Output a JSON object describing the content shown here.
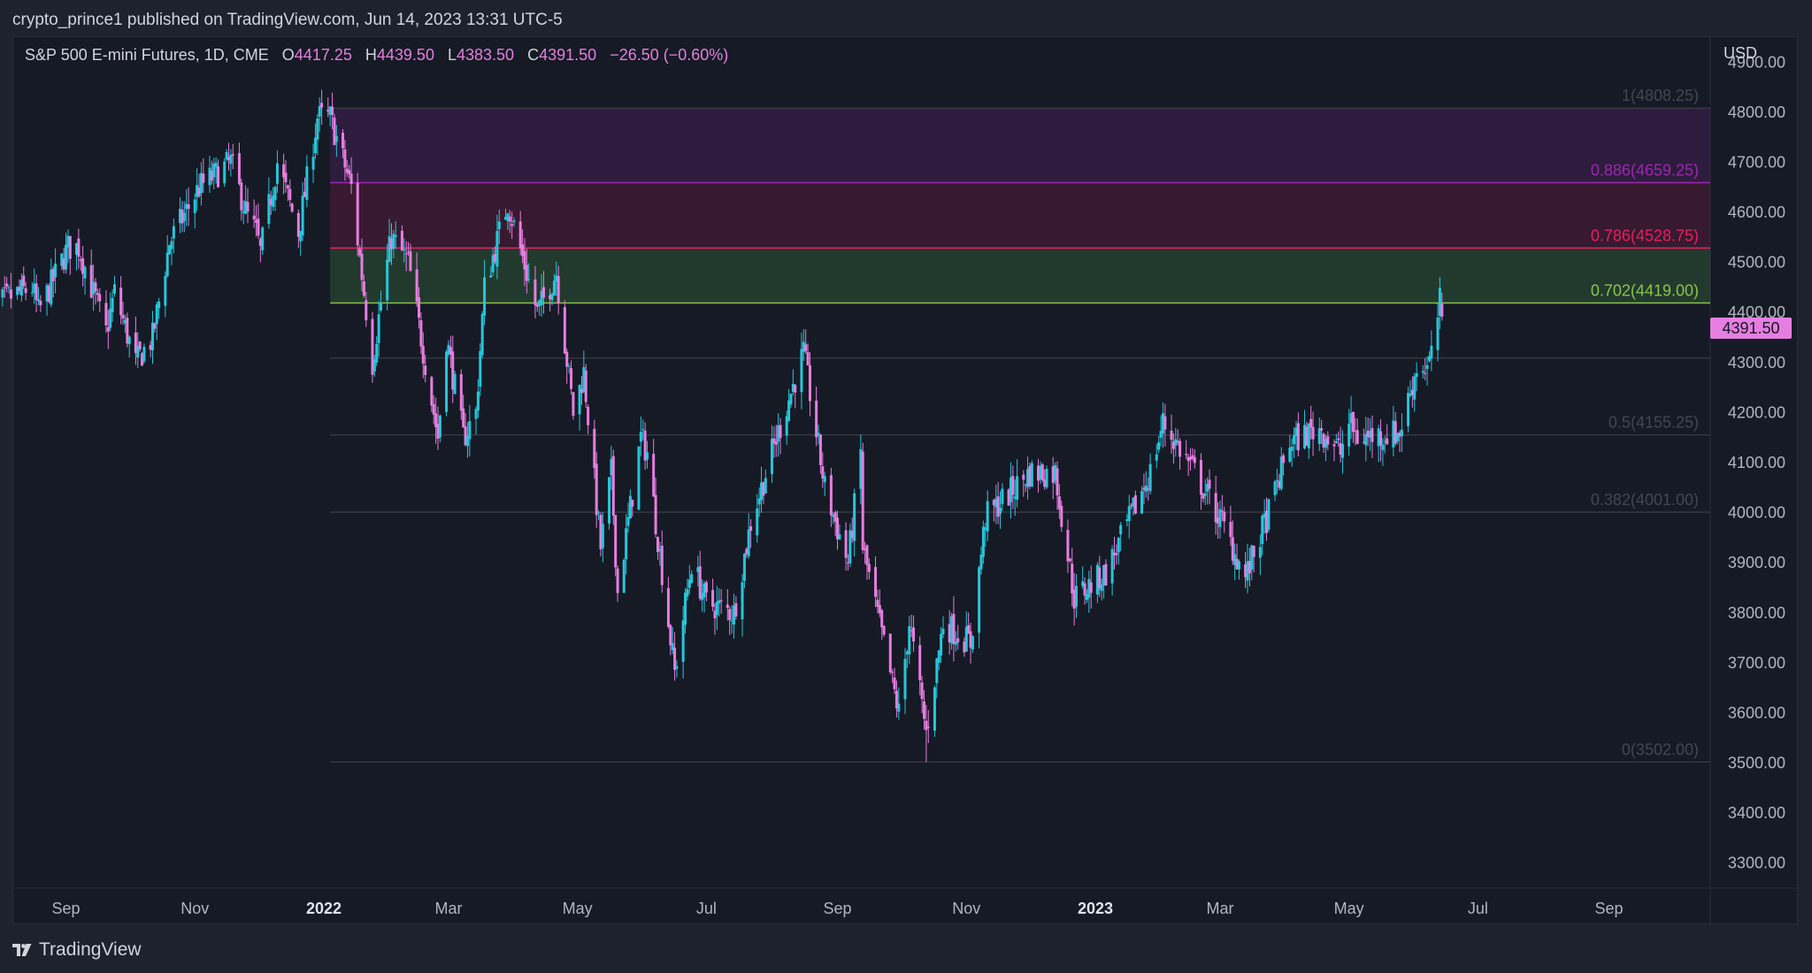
{
  "header": {
    "publisher": "crypto_prince1 published on TradingView.com, Jun 14, 2023 13:31 UTC-5"
  },
  "legend": {
    "symbol": "S&P 500 E-mini Futures, 1D, CME",
    "open_label": "O",
    "open": "4417.25",
    "high_label": "H",
    "high": "4439.50",
    "low_label": "L",
    "low": "4383.50",
    "close_label": "C",
    "close": "4391.50",
    "change": "−26.50 (−0.60%)"
  },
  "currency": "USD",
  "last_price": "4391.50",
  "footer": {
    "brand": "TradingView",
    "logo_icon": "tradingview-logo-icon"
  },
  "colors": {
    "up": "#26c6da",
    "down": "#e57ee0",
    "background": "#161a25",
    "fib_0886": "#9c27b0",
    "fib_0786": "#e91e63",
    "fib_0702": "#8bc34a"
  },
  "chart_data": {
    "type": "candlestick",
    "ylim": [
      3250,
      4950
    ],
    "y_ticks": [
      "4900.00",
      "4800.00",
      "4700.00",
      "4600.00",
      "4500.00",
      "4400.00",
      "4300.00",
      "4200.00",
      "4100.00",
      "4000.00",
      "3900.00",
      "3800.00",
      "3700.00",
      "3600.00",
      "3500.00",
      "3400.00",
      "3300.00"
    ],
    "x_ticks": [
      {
        "label": "Sep",
        "bold": false,
        "date": "2021-09-01"
      },
      {
        "label": "Nov",
        "bold": false,
        "date": "2021-11-01"
      },
      {
        "label": "2022",
        "bold": true,
        "date": "2022-01-01"
      },
      {
        "label": "Mar",
        "bold": false,
        "date": "2022-03-01"
      },
      {
        "label": "May",
        "bold": false,
        "date": "2022-05-01"
      },
      {
        "label": "Jul",
        "bold": false,
        "date": "2022-07-01"
      },
      {
        "label": "Sep",
        "bold": false,
        "date": "2022-09-01"
      },
      {
        "label": "Nov",
        "bold": false,
        "date": "2022-11-01"
      },
      {
        "label": "2023",
        "bold": true,
        "date": "2023-01-01"
      },
      {
        "label": "Mar",
        "bold": false,
        "date": "2023-03-01"
      },
      {
        "label": "May",
        "bold": false,
        "date": "2023-05-01"
      },
      {
        "label": "Jul",
        "bold": false,
        "date": "2023-07-01"
      },
      {
        "label": "Sep",
        "bold": false,
        "date": "2023-09-01"
      }
    ],
    "price_path": [
      [
        "2021-07-26",
        4400
      ],
      [
        "2021-08-05",
        4430
      ],
      [
        "2021-08-16",
        4450
      ],
      [
        "2021-08-19",
        4400
      ],
      [
        "2021-09-02",
        4530
      ],
      [
        "2021-09-07",
        4530
      ],
      [
        "2021-09-20",
        4360
      ],
      [
        "2021-09-24",
        4440
      ],
      [
        "2021-10-04",
        4300
      ],
      [
        "2021-10-12",
        4350
      ],
      [
        "2021-10-20",
        4540
      ],
      [
        "2021-11-03",
        4650
      ],
      [
        "2021-11-18",
        4700
      ],
      [
        "2021-11-26",
        4590
      ],
      [
        "2021-11-30",
        4560
      ],
      [
        "2021-12-02",
        4520
      ],
      [
        "2021-12-10",
        4700
      ],
      [
        "2021-12-20",
        4560
      ],
      [
        "2021-12-29",
        4790
      ],
      [
        "2022-01-04",
        4790
      ],
      [
        "2022-01-14",
        4650
      ],
      [
        "2022-01-24",
        4300
      ],
      [
        "2022-01-28",
        4420
      ],
      [
        "2022-02-02",
        4550
      ],
      [
        "2022-02-10",
        4500
      ],
      [
        "2022-02-14",
        4400
      ],
      [
        "2022-02-24",
        4150
      ],
      [
        "2022-02-28",
        4350
      ],
      [
        "2022-03-08",
        4150
      ],
      [
        "2022-03-14",
        4200
      ],
      [
        "2022-03-18",
        4450
      ],
      [
        "2022-03-29",
        4620
      ],
      [
        "2022-04-12",
        4400
      ],
      [
        "2022-04-21",
        4480
      ],
      [
        "2022-04-29",
        4200
      ],
      [
        "2022-05-04",
        4280
      ],
      [
        "2022-05-12",
        3930
      ],
      [
        "2022-05-17",
        4080
      ],
      [
        "2022-05-20",
        3840
      ],
      [
        "2022-05-31",
        4150
      ],
      [
        "2022-06-03",
        4120
      ],
      [
        "2022-06-16",
        3680
      ],
      [
        "2022-06-24",
        3900
      ],
      [
        "2022-07-01",
        3820
      ],
      [
        "2022-07-14",
        3800
      ],
      [
        "2022-07-22",
        3980
      ],
      [
        "2022-08-01",
        4120
      ],
      [
        "2022-08-16",
        4320
      ],
      [
        "2022-08-26",
        4050
      ],
      [
        "2022-09-06",
        3900
      ],
      [
        "2022-09-12",
        4120
      ],
      [
        "2022-09-13",
        3930
      ],
      [
        "2022-09-30",
        3600
      ],
      [
        "2022-10-05",
        3780
      ],
      [
        "2022-10-13",
        3560
      ],
      [
        "2022-10-21",
        3780
      ],
      [
        "2022-11-03",
        3740
      ],
      [
        "2022-11-10",
        3990
      ],
      [
        "2022-12-01",
        4080
      ],
      [
        "2022-12-13",
        4080
      ],
      [
        "2022-12-22",
        3830
      ],
      [
        "2023-01-06",
        3880
      ],
      [
        "2023-01-27",
        4080
      ],
      [
        "2023-02-02",
        4180
      ],
      [
        "2023-02-17",
        4080
      ],
      [
        "2023-03-02",
        3980
      ],
      [
        "2023-03-13",
        3870
      ],
      [
        "2023-03-24",
        4000
      ],
      [
        "2023-04-03",
        4140
      ],
      [
        "2023-04-17",
        4170
      ],
      [
        "2023-04-27",
        4120
      ],
      [
        "2023-05-01",
        4180
      ],
      [
        "2023-05-05",
        4150
      ],
      [
        "2023-05-25",
        4160
      ],
      [
        "2023-06-02",
        4290
      ],
      [
        "2023-06-07",
        4290
      ],
      [
        "2023-06-09",
        4310
      ],
      [
        "2023-06-13",
        4420
      ],
      [
        "2023-06-14",
        4391.5
      ]
    ],
    "notable_extremes": [
      {
        "date": "2022-01-04",
        "high": 4808.25
      },
      {
        "date": "2022-10-13",
        "low": 3502.0
      },
      {
        "date": "2023-06-14",
        "open": 4417.25,
        "high": 4439.5,
        "low": 4383.5,
        "close": 4391.5
      }
    ],
    "fib_start_date": "2022-01-04",
    "fib_levels": [
      {
        "ratio": 1,
        "price": 4808.25,
        "label": "1(4808.25)",
        "color": "#434651",
        "text_color": "#434651"
      },
      {
        "ratio": 0.886,
        "price": 4659.25,
        "label": "0.886(4659.25)",
        "color": "#9c27b0",
        "text_color": "#9c27b0",
        "fill": "rgba(156,39,176,0.18)"
      },
      {
        "ratio": 0.786,
        "price": 4528.75,
        "label": "0.786(4528.75)",
        "color": "#e91e63",
        "text_color": "#e91e63",
        "fill": "rgba(233,30,99,0.16)"
      },
      {
        "ratio": 0.702,
        "price": 4419.0,
        "label": "0.702(4419.00)",
        "color": "#8bc34a",
        "text_color": "#8bc34a",
        "fill": "rgba(76,175,80,0.22)"
      },
      {
        "ratio": 0.618,
        "price": 4308.75,
        "label": "",
        "color": "#434651",
        "text_color": "#434651"
      },
      {
        "ratio": 0.5,
        "price": 4155.25,
        "label": "0.5(4155.25)",
        "color": "#434651",
        "text_color": "#434651"
      },
      {
        "ratio": 0.382,
        "price": 4001.0,
        "label": "0.382(4001.00)",
        "color": "#434651",
        "text_color": "#434651"
      },
      {
        "ratio": 0,
        "price": 3502.0,
        "label": "0(3502.00)",
        "color": "#434651",
        "text_color": "#434651"
      }
    ]
  }
}
